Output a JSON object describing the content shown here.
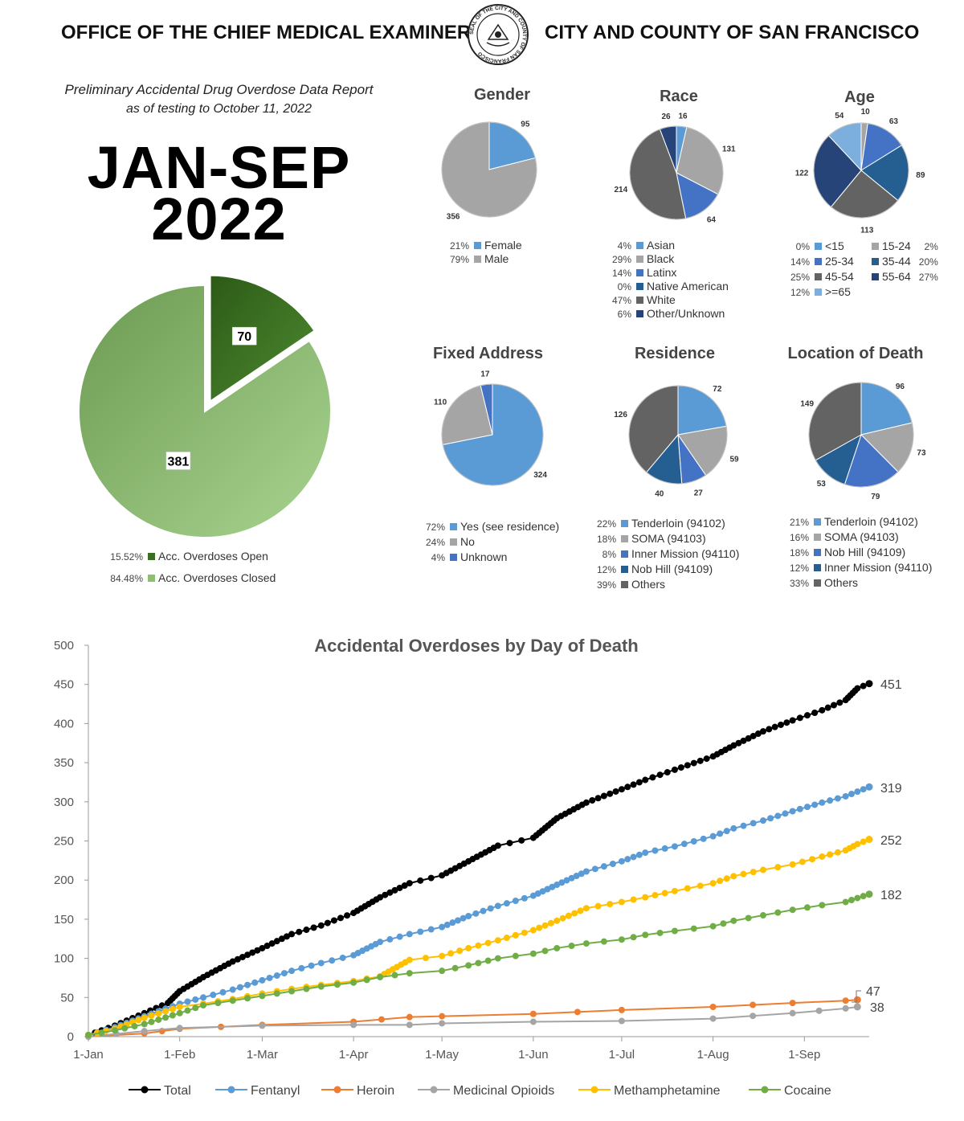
{
  "header": {
    "left": "OFFICE OF THE CHIEF MEDICAL EXAMINER",
    "right": "CITY AND COUNTY OF SAN FRANCISCO",
    "seal_text": "SEAL OF THE CITY AND COUNTY OF SAN FRANCISCO"
  },
  "report": {
    "title": "Preliminary Accidental Drug Overdose Data Report",
    "date": "as of testing to October 11, 2022",
    "period_line1": "JAN-SEP",
    "period_line2": "2022"
  },
  "colors": {
    "open": "#3a6e22",
    "closed": "#8cbf6e",
    "total": "#000000",
    "fentanyl": "#5b9bd5",
    "heroin": "#ed7d31",
    "medicinal": "#a5a5a5",
    "meth": "#ffc000",
    "cocaine": "#70ad47"
  },
  "chart_data": [
    {
      "id": "status",
      "type": "pie",
      "labels": [
        "Acc. Overdoses Open",
        "Acc. Overdoses Closed"
      ],
      "values": [
        70,
        381
      ],
      "percents": [
        "15.52%",
        "84.48%"
      ],
      "colors": [
        "#3a6e22",
        "#8cbf6e"
      ]
    },
    {
      "id": "gender",
      "type": "pie",
      "title": "Gender",
      "labels": [
        "Female",
        "Male"
      ],
      "values": [
        95,
        356
      ],
      "percents": [
        "21%",
        "79%"
      ],
      "colors": [
        "#5b9bd5",
        "#a5a5a5"
      ]
    },
    {
      "id": "race",
      "type": "pie",
      "title": "Race",
      "labels": [
        "Asian",
        "Black",
        "Latinx",
        "Native American",
        "White",
        "Other/Unknown"
      ],
      "values": [
        16,
        131,
        64,
        0,
        214,
        26
      ],
      "percents": [
        "4%",
        "29%",
        "14%",
        "0%",
        "47%",
        "6%"
      ],
      "colors": [
        "#5b9bd5",
        "#a5a5a5",
        "#4472c4",
        "#255e91",
        "#636363",
        "#264478"
      ]
    },
    {
      "id": "age",
      "type": "pie",
      "title": "Age",
      "labels": [
        "<15",
        "15-24",
        "25-34",
        "35-44",
        "45-54",
        "55-64",
        ">=65"
      ],
      "values": [
        0,
        10,
        63,
        89,
        113,
        122,
        54
      ],
      "percents": [
        "0%",
        "2%",
        "14%",
        "20%",
        "25%",
        "27%",
        "12%"
      ],
      "colors": [
        "#5b9bd5",
        "#a5a5a5",
        "#4472c4",
        "#255e91",
        "#636363",
        "#264478",
        "#7cafdd"
      ]
    },
    {
      "id": "fixed_address",
      "type": "pie",
      "title": "Fixed Address",
      "labels": [
        "Yes (see residence)",
        "No",
        "Unknown"
      ],
      "values": [
        324,
        110,
        17
      ],
      "percents": [
        "72%",
        "24%",
        "4%"
      ],
      "colors": [
        "#5b9bd5",
        "#a5a5a5",
        "#4472c4"
      ]
    },
    {
      "id": "residence",
      "type": "pie",
      "title": "Residence",
      "labels": [
        "Tenderloin (94102)",
        "SOMA (94103)",
        "Inner Mission (94110)",
        "Nob Hill (94109)",
        "Others"
      ],
      "values": [
        72,
        59,
        27,
        40,
        126
      ],
      "percents": [
        "22%",
        "18%",
        "8%",
        "12%",
        "39%"
      ],
      "colors": [
        "#5b9bd5",
        "#a5a5a5",
        "#4472c4",
        "#255e91",
        "#636363"
      ]
    },
    {
      "id": "location",
      "type": "pie",
      "title": "Location of Death",
      "labels": [
        "Tenderloin (94102)",
        "SOMA (94103)",
        "Nob Hill (94109)",
        "Inner Mission (94110)",
        "Others"
      ],
      "values": [
        96,
        73,
        79,
        53,
        149
      ],
      "percents": [
        "21%",
        "16%",
        "18%",
        "12%",
        "33%"
      ],
      "colors": [
        "#5b9bd5",
        "#a5a5a5",
        "#4472c4",
        "#255e91",
        "#636363"
      ]
    },
    {
      "id": "cumulative",
      "type": "line",
      "title": "Accidental Overdoses by Day of Death",
      "x_ticks": [
        "1-Jan",
        "1-Feb",
        "1-Mar",
        "1-Apr",
        "1-May",
        "1-Jun",
        "1-Jul",
        "1-Aug",
        "1-Sep"
      ],
      "x_tick_days": [
        1,
        32,
        60,
        91,
        121,
        152,
        182,
        213,
        244
      ],
      "xlim": [
        1,
        266
      ],
      "ylim": [
        0,
        500
      ],
      "y_ticks": [
        0,
        50,
        100,
        150,
        200,
        250,
        300,
        350,
        400,
        450,
        500
      ],
      "legend_position": "bottom",
      "series": [
        {
          "name": "Total",
          "color": "#000000",
          "end_label": "451",
          "x": [
            1,
            10,
            20,
            28,
            32,
            40,
            50,
            60,
            70,
            80,
            91,
            100,
            110,
            121,
            130,
            140,
            152,
            160,
            170,
            182,
            190,
            200,
            213,
            220,
            230,
            240,
            250,
            258,
            262,
            266
          ],
          "y": [
            2,
            14,
            30,
            43,
            58,
            76,
            96,
            113,
            131,
            142,
            158,
            178,
            196,
            206,
            224,
            244,
            254,
            279,
            299,
            316,
            328,
            341,
            358,
            372,
            390,
            404,
            417,
            430,
            445,
            451
          ]
        },
        {
          "name": "Fentanyl",
          "color": "#5b9bd5",
          "end_label": "319",
          "x": [
            1,
            10,
            20,
            32,
            40,
            50,
            60,
            70,
            80,
            91,
            100,
            110,
            121,
            130,
            140,
            152,
            160,
            170,
            182,
            190,
            200,
            213,
            220,
            230,
            240,
            250,
            258,
            262,
            266
          ],
          "y": [
            2,
            12,
            26,
            42,
            50,
            60,
            72,
            84,
            94,
            104,
            121,
            131,
            140,
            154,
            167,
            180,
            194,
            211,
            224,
            235,
            243,
            256,
            266,
            276,
            288,
            299,
            307,
            313,
            319
          ]
        },
        {
          "name": "Heroin",
          "color": "#ed7d31",
          "end_label": "47",
          "x": [
            1,
            20,
            32,
            60,
            91,
            110,
            121,
            152,
            182,
            213,
            240,
            258,
            262
          ],
          "y": [
            0,
            4,
            10,
            15,
            19,
            25,
            26,
            29,
            34,
            38,
            43,
            46,
            47
          ]
        },
        {
          "name": "Medicinal Opioids",
          "color": "#a5a5a5",
          "end_label": "38",
          "x": [
            1,
            20,
            32,
            60,
            91,
            110,
            121,
            152,
            182,
            213,
            240,
            258,
            262
          ],
          "y": [
            0,
            7,
            11,
            14,
            15,
            15,
            17,
            19,
            20,
            23,
            30,
            36,
            38
          ]
        },
        {
          "name": "Methamphetamine",
          "color": "#ffc000",
          "end_label": "252",
          "x": [
            1,
            10,
            20,
            32,
            40,
            50,
            60,
            70,
            80,
            91,
            100,
            110,
            121,
            130,
            140,
            152,
            160,
            170,
            182,
            190,
            200,
            213,
            220,
            230,
            240,
            250,
            258,
            262,
            266
          ],
          "y": [
            2,
            10,
            24,
            38,
            42,
            48,
            55,
            61,
            66,
            71,
            77,
            98,
            103,
            113,
            123,
            136,
            148,
            164,
            172,
            178,
            186,
            196,
            205,
            213,
            220,
            230,
            238,
            246,
            252
          ]
        },
        {
          "name": "Cocaine",
          "color": "#70ad47",
          "end_label": "182",
          "x": [
            1,
            10,
            20,
            32,
            40,
            50,
            60,
            70,
            80,
            91,
            100,
            110,
            121,
            130,
            140,
            152,
            160,
            170,
            182,
            190,
            200,
            213,
            220,
            230,
            240,
            250,
            258,
            262,
            266
          ],
          "y": [
            2,
            8,
            16,
            30,
            40,
            46,
            52,
            58,
            64,
            69,
            76,
            81,
            84,
            91,
            100,
            106,
            113,
            119,
            124,
            130,
            135,
            141,
            148,
            155,
            162,
            168,
            172,
            177,
            182
          ]
        }
      ]
    }
  ]
}
